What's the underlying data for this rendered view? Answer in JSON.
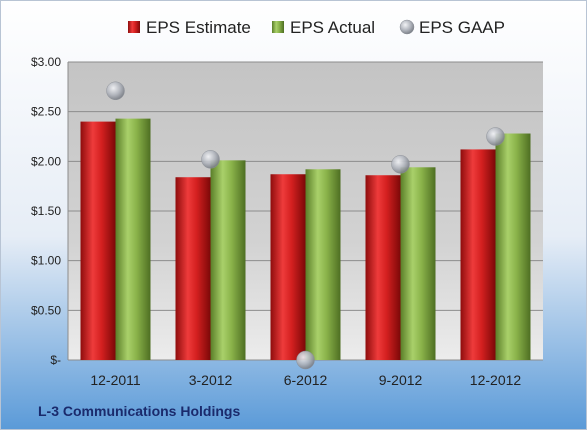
{
  "chart_data": {
    "type": "bar",
    "categories": [
      "12-2011",
      "3-2012",
      "6-2012",
      "9-2012",
      "12-2012"
    ],
    "series": [
      {
        "name": "EPS Estimate",
        "kind": "bar",
        "color": "#d42020",
        "values": [
          2.4,
          1.84,
          1.87,
          1.86,
          2.12
        ]
      },
      {
        "name": "EPS Actual",
        "kind": "bar",
        "color": "#8ab34a",
        "values": [
          2.43,
          2.01,
          1.92,
          1.94,
          2.28
        ]
      },
      {
        "name": "EPS GAAP",
        "kind": "scatter",
        "color": "#b0b4bc",
        "values": [
          2.71,
          2.02,
          0.0,
          1.97,
          2.25
        ]
      }
    ],
    "ylim": [
      0,
      3
    ],
    "yticks": [
      0,
      0.5,
      1,
      1.5,
      2,
      2.5,
      3
    ],
    "ytick_labels": [
      "$-",
      "$0.50",
      "$1.00",
      "$1.50",
      "$2.00",
      "$2.50",
      "$3.00"
    ],
    "grid": true,
    "legend_position": "top",
    "title": "",
    "xlabel": "",
    "ylabel": ""
  },
  "footer": {
    "company": "L-3 Communications Holdings"
  }
}
